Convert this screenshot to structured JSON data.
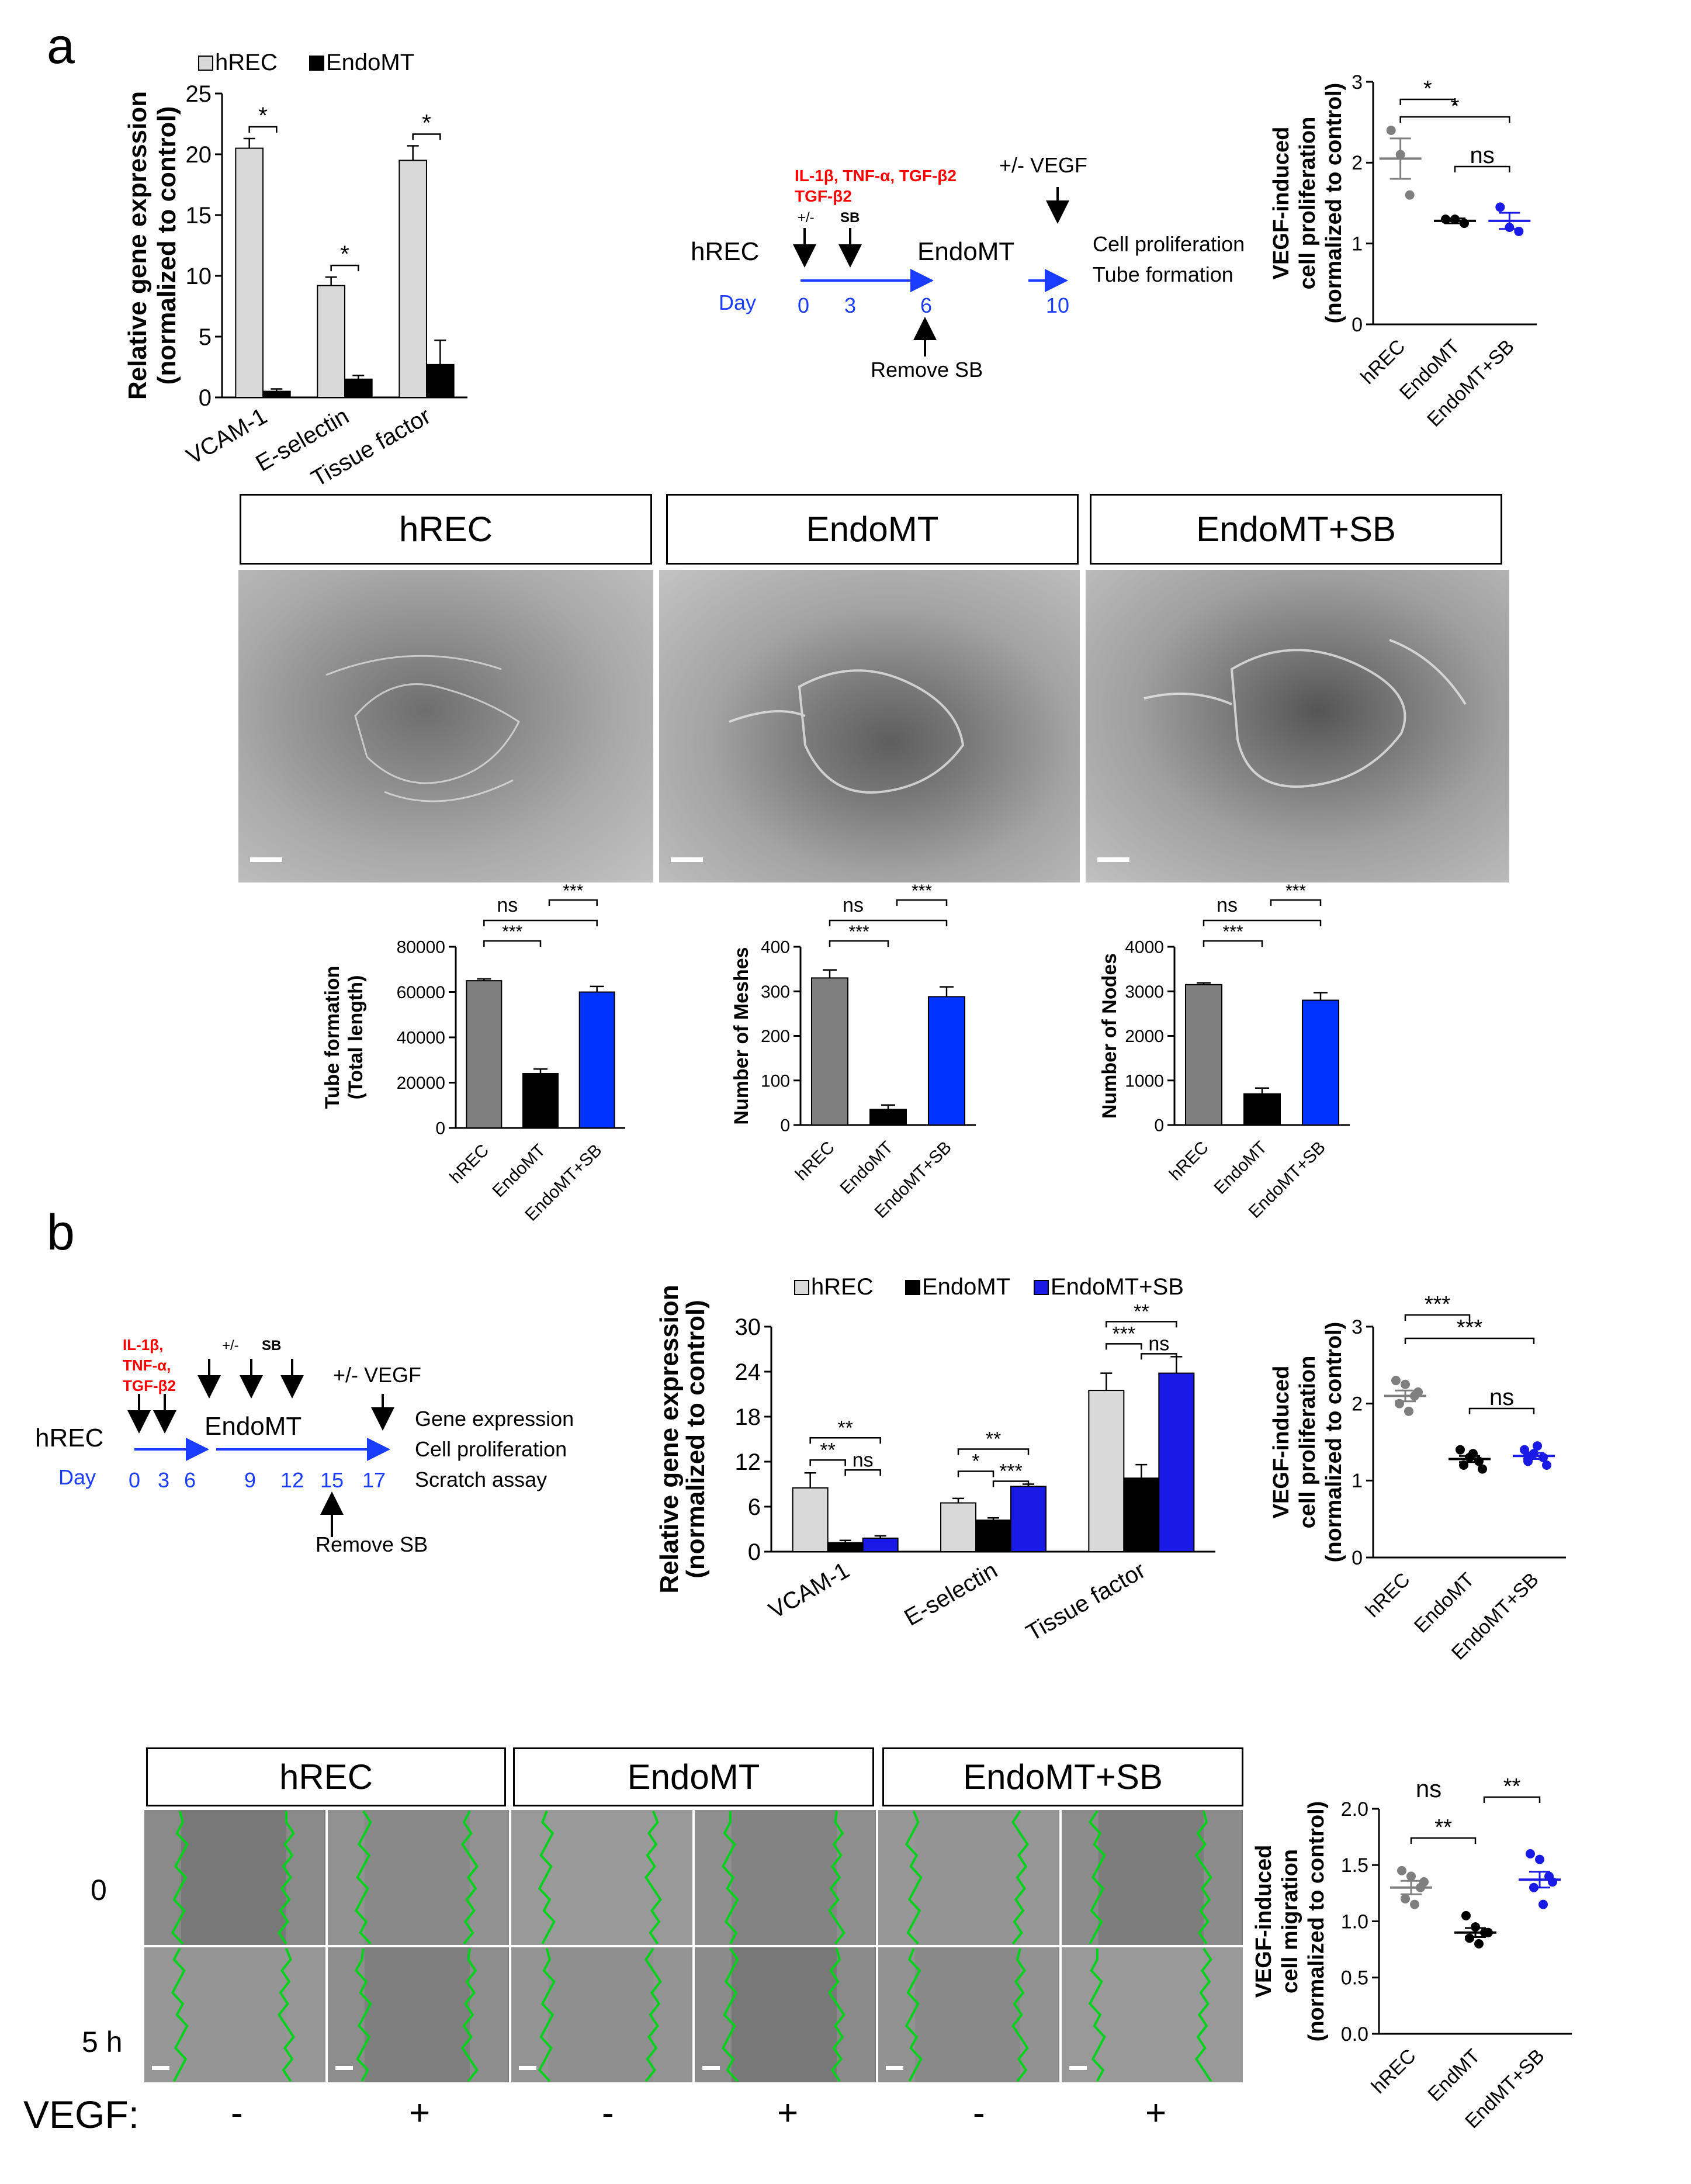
{
  "panels": {
    "a": "a",
    "b": "b"
  },
  "schematic_a": {
    "cytokines": "IL-1β, TNF-α, TGF-β2",
    "pm_mark": "+/-",
    "sb_mark": "SB",
    "start": "hREC",
    "middle": "EndoMT",
    "vegf": "+/- VEGF",
    "readout1": "Cell proliferation",
    "readout2": "Tube formation",
    "day_label": "Day",
    "days": [
      "0",
      "3",
      "6",
      "10"
    ],
    "remove": "Remove SB"
  },
  "schematic_b": {
    "cytokines_1": "IL-1β,",
    "cytokines_2": "TNF-α,",
    "cytokines_3": "TGF-β2",
    "pm_mark": "+/-",
    "sb_mark": "SB",
    "vegf": "+/- VEGF",
    "start": "hREC",
    "middle": "EndoMT",
    "readout1": "Gene expression",
    "readout2": "Cell proliferation",
    "readout3": "Scratch assay",
    "day_label": "Day",
    "days": [
      "0",
      "3",
      "6",
      "9",
      "12",
      "15",
      "17"
    ],
    "remove": "Remove SB"
  },
  "tube_images": {
    "labels": [
      "hREC",
      "EndoMT",
      "EndoMT+SB"
    ]
  },
  "scratch_images": {
    "labels": [
      "hREC",
      "EndoMT",
      "EndoMT+SB"
    ],
    "rows": [
      "0",
      "5 h"
    ],
    "vegf_label": "VEGF:",
    "vegf_signs": [
      "-",
      "+",
      "-",
      "+",
      "-",
      "+"
    ]
  },
  "colors": {
    "light_gray": "#d9d9d9",
    "gray": "#7f7f7f",
    "black": "#000000",
    "blue": "#0033ff",
    "blue_dark": "#1a1ae6",
    "red": "#ff0000",
    "schematic_blue": "#1a3cff",
    "scratch_green": "#00d11a"
  },
  "chart_data": [
    {
      "id": "a_gene",
      "type": "bar",
      "ylabel": "Relative gene expression (normalized to control)",
      "ylabel_lines": [
        "Relative gene expression",
        "(normalized to control)"
      ],
      "categories": [
        "VCAM-1",
        "E-selectin",
        "Tissue factor"
      ],
      "ylim": [
        0,
        25
      ],
      "yticks": [
        "0",
        "5",
        "10",
        "15",
        "20",
        "25"
      ],
      "legend_position": "top",
      "series": [
        {
          "name": "hREC",
          "values": [
            20.5,
            9.2,
            19.5
          ],
          "errors": [
            0.8,
            0.7,
            1.2
          ]
        },
        {
          "name": "EndoMT",
          "values": [
            0.5,
            1.5,
            2.7
          ],
          "errors": [
            0.2,
            0.3,
            2.0
          ]
        }
      ],
      "significance": [
        "*",
        "*",
        "*"
      ]
    },
    {
      "id": "a_prolif",
      "type": "scatter",
      "ylabel_lines": [
        "VEGF-induced",
        "cell proliferation",
        "(normalized to control)"
      ],
      "categories": [
        "hREC",
        "EndoMT",
        "EndoMT+SB"
      ],
      "ylim": [
        0,
        3
      ],
      "yticks": [
        "0",
        "1",
        "2",
        "3"
      ],
      "points": [
        [
          2.4,
          2.1,
          1.6
        ],
        [
          1.3,
          1.3,
          1.25
        ],
        [
          1.45,
          1.2,
          1.15
        ]
      ],
      "means": [
        2.05,
        1.28,
        1.28
      ],
      "sems": [
        0.25,
        0.03,
        0.1
      ],
      "significance": [
        "*",
        "*",
        "ns"
      ]
    },
    {
      "id": "a_tube_length",
      "type": "bar",
      "ylabel_lines": [
        "Tube formation",
        "(Total length)"
      ],
      "categories": [
        "hREC",
        "EndoMT",
        "EndoMT+SB"
      ],
      "ylim": [
        0,
        80000
      ],
      "yticks": [
        "0",
        "20000",
        "40000",
        "60000",
        "80000"
      ],
      "values": [
        65000,
        24000,
        60000
      ],
      "errors": [
        800,
        2000,
        2500
      ],
      "significance": [
        "***",
        "ns",
        "***"
      ]
    },
    {
      "id": "a_meshes",
      "type": "bar",
      "ylabel_lines": [
        "Number of Meshes"
      ],
      "categories": [
        "hREC",
        "EndoMT",
        "EndoMT+SB"
      ],
      "ylim": [
        0,
        400
      ],
      "yticks": [
        "0",
        "100",
        "200",
        "300",
        "400"
      ],
      "values": [
        330,
        35,
        288
      ],
      "errors": [
        18,
        10,
        22
      ],
      "significance": [
        "***",
        "ns",
        "***"
      ]
    },
    {
      "id": "a_nodes",
      "type": "bar",
      "ylabel_lines": [
        "Number of Nodes"
      ],
      "categories": [
        "hREC",
        "EndoMT",
        "EndoMT+SB"
      ],
      "ylim": [
        0,
        4000
      ],
      "yticks": [
        "0",
        "1000",
        "2000",
        "3000",
        "4000"
      ],
      "values": [
        3150,
        700,
        2800
      ],
      "errors": [
        40,
        130,
        170
      ],
      "significance": [
        "***",
        "ns",
        "***"
      ]
    },
    {
      "id": "b_gene",
      "type": "bar",
      "ylabel_lines": [
        "Relative gene expression",
        "(normalized to control)"
      ],
      "categories": [
        "VCAM-1",
        "E-selectin",
        "Tissue factor"
      ],
      "ylim": [
        0,
        30
      ],
      "yticks": [
        "0",
        "6",
        "12",
        "18",
        "24",
        "30"
      ],
      "legend_position": "top",
      "series": [
        {
          "name": "hREC",
          "values": [
            8.5,
            6.5,
            21.5
          ],
          "errors": [
            2.0,
            0.6,
            2.3
          ]
        },
        {
          "name": "EndoMT",
          "values": [
            1.2,
            4.2,
            9.8
          ],
          "errors": [
            0.3,
            0.3,
            1.8
          ]
        },
        {
          "name": "EndoMT+SB",
          "values": [
            1.8,
            8.7,
            23.8
          ],
          "errors": [
            0.3,
            0.3,
            2.2
          ]
        }
      ],
      "significance": [
        "**",
        "**",
        "ns",
        "**",
        "*",
        "***",
        "**",
        "***",
        "ns"
      ]
    },
    {
      "id": "b_prolif",
      "type": "scatter",
      "ylabel_lines": [
        "VEGF-induced",
        "cell proliferation",
        "(normalized to control)"
      ],
      "categories": [
        "hREC",
        "EndoMT",
        "EndoMT+SB"
      ],
      "ylim": [
        0,
        3
      ],
      "yticks": [
        "0",
        "1",
        "2",
        "3"
      ],
      "points": [
        [
          2.3,
          2.25,
          2.1,
          2.0,
          1.9,
          2.15
        ],
        [
          1.4,
          1.3,
          1.25,
          1.2,
          1.35,
          1.15
        ],
        [
          1.4,
          1.35,
          1.3,
          1.25,
          1.45,
          1.2,
          1.32
        ]
      ],
      "means": [
        2.1,
        1.28,
        1.32
      ],
      "sems": [
        0.07,
        0.04,
        0.04
      ],
      "significance": [
        "***",
        "***",
        "ns"
      ]
    },
    {
      "id": "b_migration",
      "type": "scatter",
      "ylabel_lines": [
        "VEGF-induced",
        "cell migration",
        "(normalized to control)"
      ],
      "categories": [
        "hREC",
        "EndMT",
        "EndMT+SB"
      ],
      "ylim": [
        0,
        2.0
      ],
      "yticks": [
        "0.0",
        "0.5",
        "1.0",
        "1.5",
        "2.0"
      ],
      "points": [
        [
          1.45,
          1.4,
          1.3,
          1.2,
          1.15,
          1.35
        ],
        [
          1.05,
          0.95,
          0.9,
          0.85,
          0.8,
          0.9
        ],
        [
          1.6,
          1.55,
          1.4,
          1.3,
          1.15,
          1.35
        ]
      ],
      "means": [
        1.3,
        0.9,
        1.37
      ],
      "sems": [
        0.06,
        0.04,
        0.07
      ],
      "significance": [
        "**",
        "ns",
        "**"
      ]
    }
  ]
}
